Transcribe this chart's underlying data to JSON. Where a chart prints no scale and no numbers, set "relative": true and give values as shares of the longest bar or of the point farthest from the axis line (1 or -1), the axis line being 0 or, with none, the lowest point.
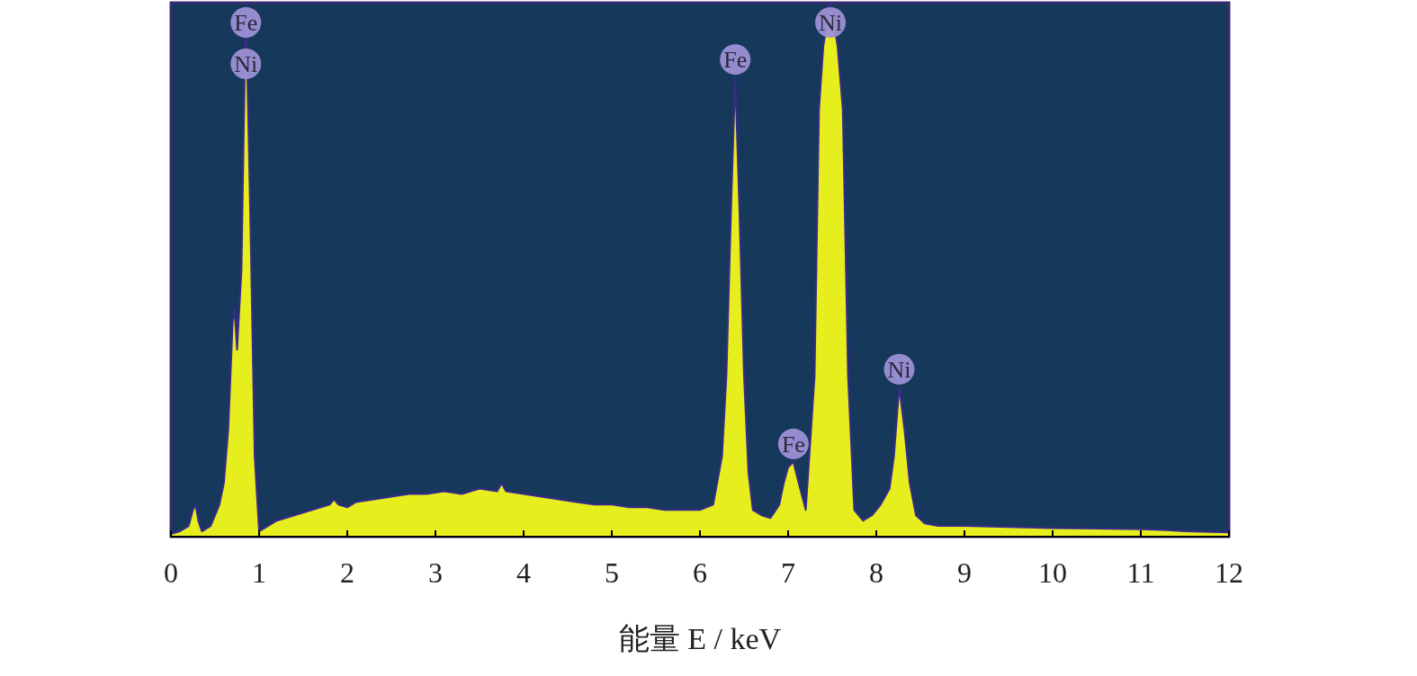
{
  "chart_data": {
    "type": "area",
    "relative": true,
    "xlabel": "能量 E / keV",
    "xlim": [
      0,
      12
    ],
    "xticks": [
      0,
      1,
      2,
      3,
      4,
      5,
      6,
      7,
      8,
      9,
      10,
      11,
      12
    ],
    "series": [
      {
        "color": "#e6ee1e",
        "x": [
          0,
          0.1,
          0.2,
          0.25,
          0.28,
          0.31,
          0.35,
          0.45,
          0.55,
          0.6,
          0.65,
          0.7,
          0.72,
          0.75,
          0.8,
          0.85,
          0.9,
          0.95,
          1.0,
          1.05,
          1.1,
          1.2,
          1.4,
          1.6,
          1.8,
          1.85,
          1.9,
          2.0,
          2.1,
          2.3,
          2.5,
          2.7,
          2.9,
          3.1,
          3.3,
          3.5,
          3.7,
          3.75,
          3.8,
          4.0,
          4.2,
          4.4,
          4.6,
          4.8,
          5.0,
          5.2,
          5.4,
          5.6,
          5.8,
          6.0,
          6.15,
          6.25,
          6.3,
          6.35,
          6.4,
          6.45,
          6.5,
          6.55,
          6.6,
          6.7,
          6.8,
          6.9,
          6.95,
          7.0,
          7.06,
          7.12,
          7.2,
          7.3,
          7.35,
          7.4,
          7.48,
          7.56,
          7.62,
          7.68,
          7.75,
          7.85,
          7.95,
          8.05,
          8.15,
          8.2,
          8.26,
          8.32,
          8.38,
          8.45,
          8.55,
          8.7,
          9.0,
          9.5,
          10,
          10.5,
          11,
          11.3,
          11.5,
          12
        ],
        "values": [
          0.005,
          0.01,
          0.02,
          0.05,
          0.06,
          0.03,
          0.01,
          0.02,
          0.06,
          0.1,
          0.2,
          0.4,
          0.43,
          0.35,
          0.5,
          1.0,
          0.6,
          0.15,
          0.01,
          0.015,
          0.02,
          0.03,
          0.04,
          0.05,
          0.06,
          0.07,
          0.06,
          0.055,
          0.065,
          0.07,
          0.075,
          0.08,
          0.08,
          0.085,
          0.08,
          0.09,
          0.085,
          0.1,
          0.085,
          0.08,
          0.075,
          0.07,
          0.065,
          0.06,
          0.06,
          0.055,
          0.055,
          0.05,
          0.05,
          0.05,
          0.06,
          0.15,
          0.3,
          0.6,
          0.86,
          0.6,
          0.3,
          0.12,
          0.05,
          0.04,
          0.035,
          0.06,
          0.1,
          0.13,
          0.14,
          0.1,
          0.05,
          0.3,
          0.8,
          0.92,
          1.0,
          0.92,
          0.8,
          0.3,
          0.05,
          0.03,
          0.04,
          0.06,
          0.09,
          0.15,
          0.28,
          0.2,
          0.1,
          0.04,
          0.025,
          0.02,
          0.02,
          0.018,
          0.016,
          0.015,
          0.014,
          0.012,
          0.01,
          0.008
        ]
      }
    ],
    "annotations": [
      {
        "text": "Fe",
        "x": 0.85,
        "y": 1.0
      },
      {
        "text": "Ni",
        "x": 0.85,
        "y": 1.0
      },
      {
        "text": "Fe",
        "x": 6.4,
        "y": 0.86
      },
      {
        "text": "Fe",
        "x": 7.06,
        "y": 0.14
      },
      {
        "text": "Ni",
        "x": 7.48,
        "y": 1.0
      },
      {
        "text": "Ni",
        "x": 8.26,
        "y": 0.28
      }
    ]
  }
}
